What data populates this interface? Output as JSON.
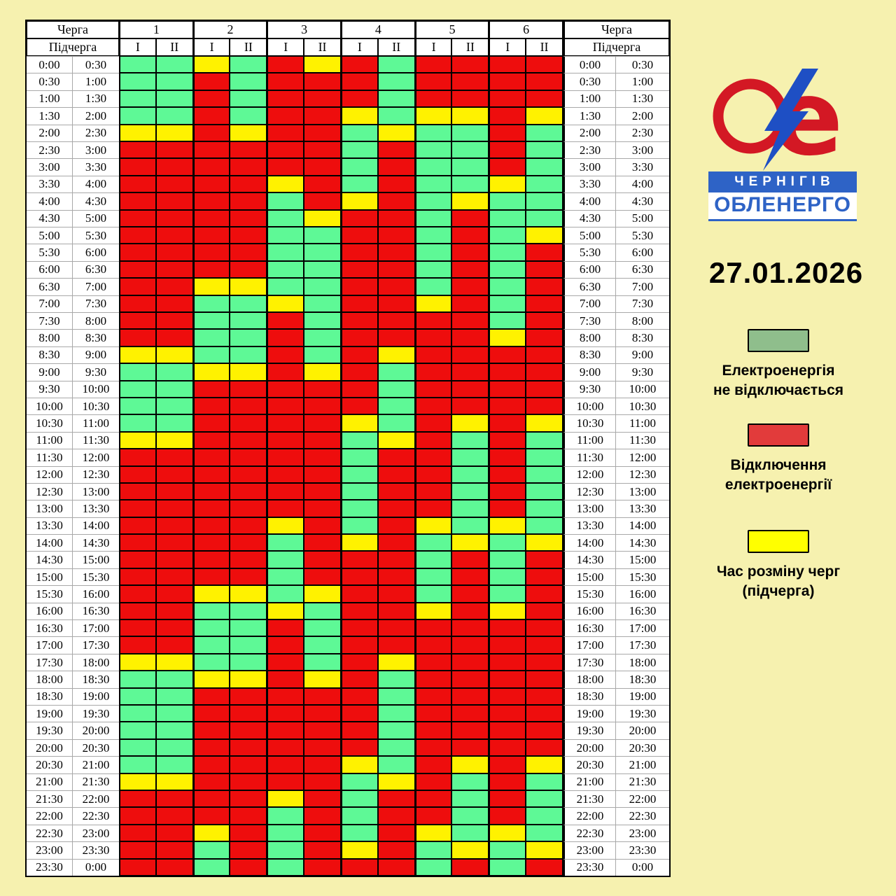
{
  "page": {
    "background": "#F6F1AF"
  },
  "table": {
    "header": {
      "queue_label": "Черга",
      "subqueue_label": "Підчерга",
      "queues": [
        "1",
        "2",
        "3",
        "4",
        "5",
        "6"
      ],
      "subqueues": [
        "I",
        "II"
      ]
    }
  },
  "chart_data": {
    "type": "heatmap",
    "columns": [
      "1-I",
      "1-II",
      "2-I",
      "2-II",
      "3-I",
      "3-II",
      "4-I",
      "4-II",
      "5-I",
      "5-II",
      "6-I",
      "6-II"
    ],
    "cell_states": {
      "G": "електроенергія не відключається",
      "R": "відключення електроенергії",
      "Y": "час розміну черг (підчерга)"
    },
    "palette": {
      "G": "#5EF996",
      "R": "#EE0D0D",
      "Y": "#FFF200"
    },
    "time_rows": [
      [
        "0:00",
        "0:30"
      ],
      [
        "0:30",
        "1:00"
      ],
      [
        "1:00",
        "1:30"
      ],
      [
        "1:30",
        "2:00"
      ],
      [
        "2:00",
        "2:30"
      ],
      [
        "2:30",
        "3:00"
      ],
      [
        "3:00",
        "3:30"
      ],
      [
        "3:30",
        "4:00"
      ],
      [
        "4:00",
        "4:30"
      ],
      [
        "4:30",
        "5:00"
      ],
      [
        "5:00",
        "5:30"
      ],
      [
        "5:30",
        "6:00"
      ],
      [
        "6:00",
        "6:30"
      ],
      [
        "6:30",
        "7:00"
      ],
      [
        "7:00",
        "7:30"
      ],
      [
        "7:30",
        "8:00"
      ],
      [
        "8:00",
        "8:30"
      ],
      [
        "8:30",
        "9:00"
      ],
      [
        "9:00",
        "9:30"
      ],
      [
        "9:30",
        "10:00"
      ],
      [
        "10:00",
        "10:30"
      ],
      [
        "10:30",
        "11:00"
      ],
      [
        "11:00",
        "11:30"
      ],
      [
        "11:30",
        "12:00"
      ],
      [
        "12:00",
        "12:30"
      ],
      [
        "12:30",
        "13:00"
      ],
      [
        "13:00",
        "13:30"
      ],
      [
        "13:30",
        "14:00"
      ],
      [
        "14:00",
        "14:30"
      ],
      [
        "14:30",
        "15:00"
      ],
      [
        "15:00",
        "15:30"
      ],
      [
        "15:30",
        "16:00"
      ],
      [
        "16:00",
        "16:30"
      ],
      [
        "16:30",
        "17:00"
      ],
      [
        "17:00",
        "17:30"
      ],
      [
        "17:30",
        "18:00"
      ],
      [
        "18:00",
        "18:30"
      ],
      [
        "18:30",
        "19:00"
      ],
      [
        "19:00",
        "19:30"
      ],
      [
        "19:30",
        "20:00"
      ],
      [
        "20:00",
        "20:30"
      ],
      [
        "20:30",
        "21:00"
      ],
      [
        "21:00",
        "21:30"
      ],
      [
        "21:30",
        "22:00"
      ],
      [
        "22:00",
        "22:30"
      ],
      [
        "22:30",
        "23:00"
      ],
      [
        "23:00",
        "23:30"
      ],
      [
        "23:30",
        "0:00"
      ]
    ],
    "rows": [
      "GGYGRYRGRRRR",
      "GGRGRRRGRRRR",
      "GGRGRRRGRRRR",
      "GGRGRRYGYYRY",
      "YYRYRRGYGGRG",
      "RRRRRRGRGGRG",
      "RRRRRRGRGGRG",
      "RRRRYRGRGGYG",
      "RRRRGRYRGYGG",
      "RRRRGYRRGRGG",
      "RRRRGGRRGRGY",
      "RRRRGGRRGRGR",
      "RRRRGGRRGRGR",
      "RRYYGGRRGRGR",
      "RRGGYGRRYRGR",
      "RRGGRGRRRRGR",
      "RRGGRGRRRRYR",
      "YYGGRGRYRRRR",
      "GGYYRYRGRRRR",
      "GGRRRRRGRRRR",
      "GGRRRRRGRRRR",
      "GGRRRRYGRYRY",
      "YYRRRRGYRGRG",
      "RRRRRRGRRGRG",
      "RRRRRRGRRGRG",
      "RRRRRRGRRGRG",
      "RRRRRRGRRGRG",
      "RRRRYRGRYGYG",
      "RRRRGRYRGYGY",
      "RRRRGRRRGRGR",
      "RRRRGRRRGRGR",
      "RRYYGYRRGRGR",
      "RRGGYGRRYRYR",
      "RRGGRGRRRRRR",
      "RRGGRGRRRRRR",
      "YYGGRGRYRRRR",
      "GGYYRYRGRRRR",
      "GGRRRRRGRRRR",
      "GGRRRRRGRRRR",
      "GGRRRRRGRRRR",
      "GGRRRRRGRRRR",
      "GGRRRRYGRYRY",
      "YYRRRRGYRGRG",
      "RRRRYRGRRGRG",
      "RRRRGRGRRGRG",
      "RRYRGRGRYGYG",
      "RRGRGRYRGYGY",
      "RRGRGRRRGRGR"
    ]
  },
  "sidebar": {
    "logo": {
      "line1": "ЧЕРНІГІВ",
      "line2": "ОБЛЕНЕРГО",
      "red": "#D31824",
      "blue": "#2E63C6"
    },
    "date": "27.01.2026",
    "legend": [
      {
        "color": "#8FBE8C",
        "line1": "Електроенергія",
        "line2": "не відключається"
      },
      {
        "color": "#E23B3B",
        "line1": "Відключення",
        "line2": "електроенергії"
      },
      {
        "color": "#FFFF00",
        "line1": "Час розміну черг",
        "line2": "(підчерга)"
      }
    ]
  }
}
